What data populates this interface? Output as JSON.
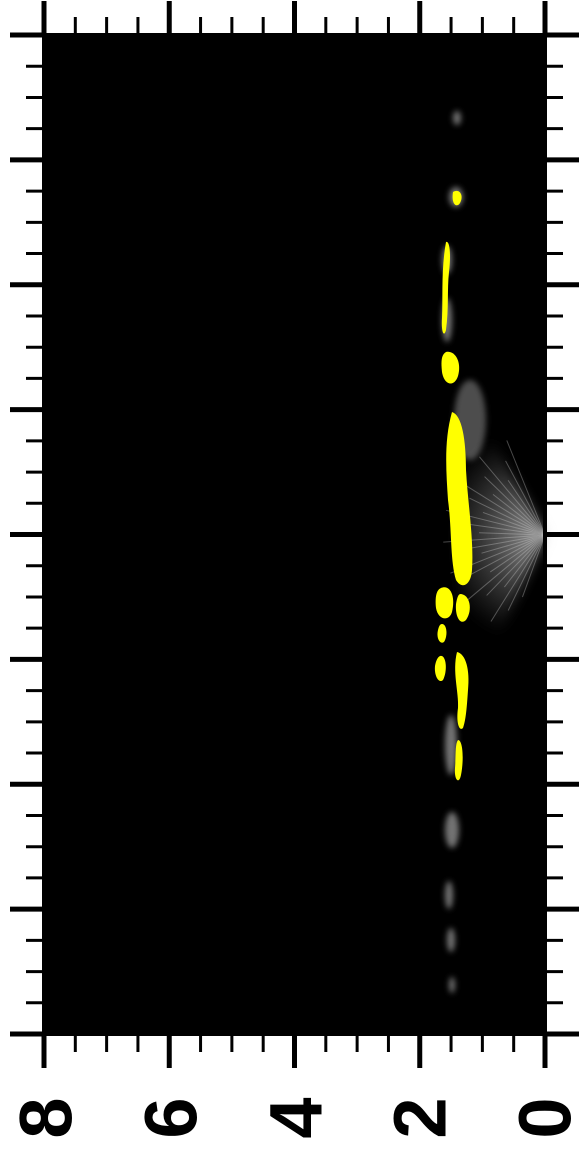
{
  "figure": {
    "background_color": "#000000",
    "feature_color": "#ffff00",
    "glow_color": "#d8d8d8",
    "frame_color": "#000000"
  },
  "axis_bottom": {
    "tick_labels": [
      "8",
      "6",
      "4",
      "2",
      "0"
    ],
    "range": [
      8,
      0
    ],
    "major_step": 2,
    "minor_step": 0.5
  }
}
